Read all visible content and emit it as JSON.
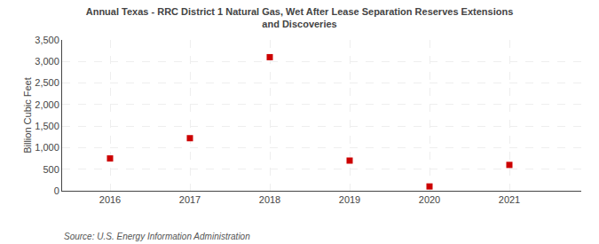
{
  "chart_data": {
    "type": "scatter",
    "title": "Annual Texas - RRC District 1 Natural Gas, Wet After Lease Separation Reserves Extensions\nand Discoveries",
    "ylabel": "Billion Cubic Feet",
    "annotations": [
      "Source: U.S. Energy Information Administration"
    ],
    "x": [
      2016,
      2017,
      2018,
      2019,
      2020,
      2021
    ],
    "values": [
      750,
      1220,
      3100,
      700,
      100,
      600
    ],
    "color": "#cc0000",
    "marker": "square",
    "xlim": [
      2015.4,
      2021.9
    ],
    "xticks": [
      2016,
      2017,
      2018,
      2019,
      2020,
      2021
    ],
    "ylim": [
      0,
      3500
    ],
    "yticks": [
      0,
      500,
      {
        "value": 1000,
        "label": "1,000"
      },
      {
        "value": 1500,
        "label": "1,500"
      },
      {
        "value": 2000,
        "label": "2,000"
      },
      {
        "value": 2500,
        "label": "2,500"
      },
      {
        "value": 3000,
        "label": "3,000"
      },
      {
        "value": 3500,
        "label": "3,500"
      }
    ],
    "grid": true
  }
}
